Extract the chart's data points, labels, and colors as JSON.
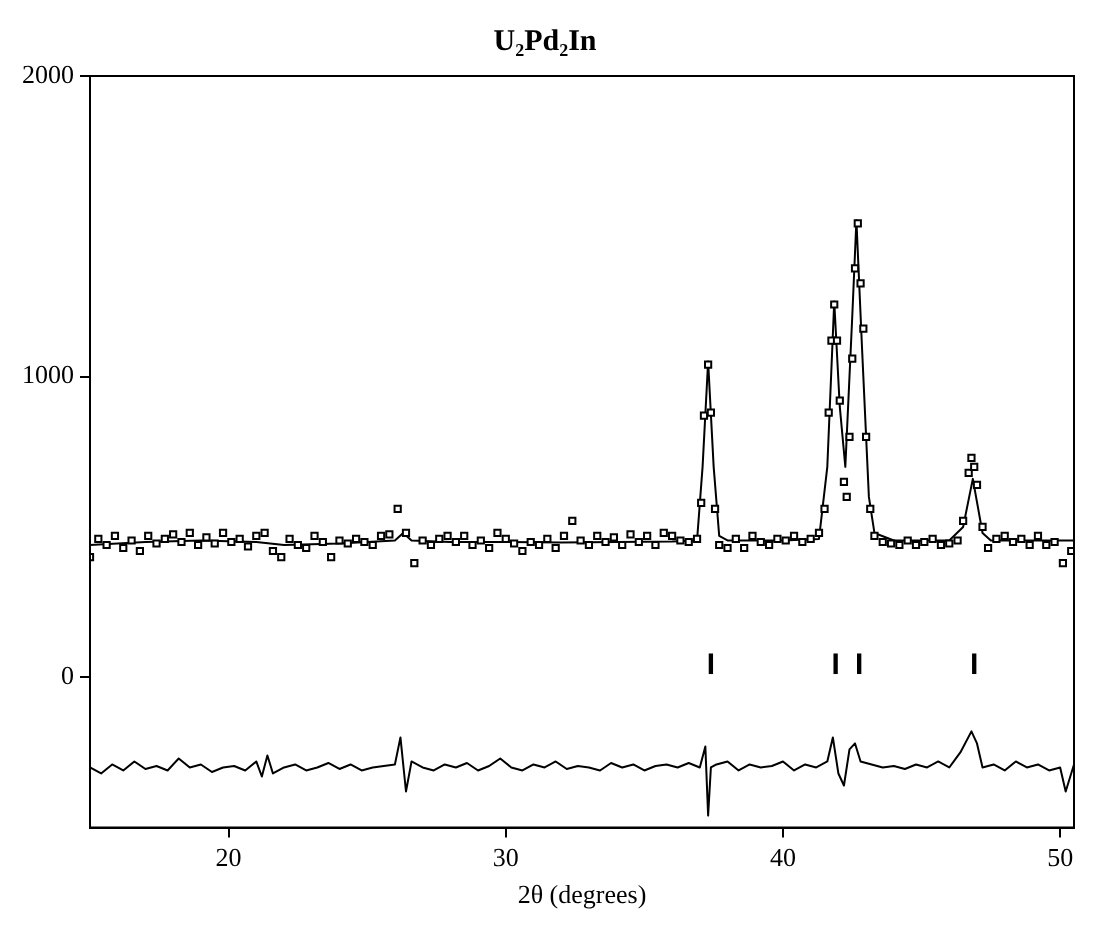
{
  "chart_data": {
    "type": "scatter",
    "title": "U₂Pd₂In",
    "xlabel": "2θ (degrees)",
    "xlim": [
      15,
      50.5
    ],
    "xticks": [
      20,
      30,
      40,
      50
    ],
    "ylim": [
      -500,
      2000
    ],
    "yticks": [
      0,
      1000,
      2000
    ],
    "grid": false,
    "legend": false,
    "series": [
      {
        "type": "scatter",
        "marker": "square",
        "color": "#000000",
        "x": [
          15.0,
          15.3,
          15.6,
          15.9,
          16.2,
          16.5,
          16.8,
          17.1,
          17.4,
          17.7,
          18.0,
          18.3,
          18.6,
          18.9,
          19.2,
          19.5,
          19.8,
          20.1,
          20.4,
          20.7,
          21.0,
          21.3,
          21.6,
          21.9,
          22.2,
          22.5,
          22.8,
          23.1,
          23.4,
          23.7,
          24.0,
          24.3,
          24.6,
          24.9,
          25.2,
          25.5,
          25.8,
          26.1,
          26.4,
          26.7,
          27.0,
          27.3,
          27.6,
          27.9,
          28.2,
          28.5,
          28.8,
          29.1,
          29.4,
          29.7,
          30.0,
          30.3,
          30.6,
          30.9,
          31.2,
          31.5,
          31.8,
          32.1,
          32.4,
          32.7,
          33.0,
          33.3,
          33.6,
          33.9,
          34.2,
          34.5,
          34.8,
          35.1,
          35.4,
          35.7,
          36.0,
          36.3,
          36.6,
          36.9,
          37.05,
          37.15,
          37.3,
          37.4,
          37.55,
          37.7,
          38.0,
          38.3,
          38.6,
          38.9,
          39.2,
          39.5,
          39.8,
          40.1,
          40.4,
          40.7,
          41.0,
          41.3,
          41.5,
          41.65,
          41.75,
          41.85,
          41.95,
          42.05,
          42.2,
          42.3,
          42.4,
          42.5,
          42.6,
          42.7,
          42.8,
          42.9,
          43.0,
          43.15,
          43.3,
          43.6,
          43.9,
          44.2,
          44.5,
          44.8,
          45.1,
          45.4,
          45.7,
          46.0,
          46.3,
          46.5,
          46.7,
          46.8,
          46.9,
          47.0,
          47.2,
          47.4,
          47.7,
          48.0,
          48.3,
          48.6,
          48.9,
          49.2,
          49.5,
          49.8,
          50.1,
          50.4
        ],
        "values": [
          400,
          460,
          440,
          470,
          430,
          455,
          420,
          470,
          445,
          460,
          475,
          450,
          480,
          440,
          465,
          445,
          480,
          450,
          460,
          435,
          470,
          480,
          420,
          400,
          460,
          440,
          430,
          470,
          450,
          400,
          455,
          445,
          460,
          450,
          440,
          470,
          475,
          560,
          480,
          380,
          455,
          440,
          460,
          470,
          450,
          470,
          440,
          455,
          430,
          480,
          460,
          445,
          420,
          450,
          440,
          460,
          430,
          470,
          520,
          455,
          440,
          470,
          450,
          465,
          440,
          475,
          450,
          470,
          440,
          480,
          470,
          455,
          450,
          460,
          580,
          870,
          1040,
          880,
          560,
          440,
          430,
          460,
          430,
          470,
          450,
          440,
          460,
          455,
          470,
          450,
          460,
          480,
          560,
          880,
          1120,
          1240,
          1120,
          920,
          650,
          600,
          800,
          1060,
          1360,
          1510,
          1310,
          1160,
          800,
          560,
          470,
          450,
          445,
          440,
          455,
          440,
          450,
          460,
          440,
          445,
          455,
          520,
          680,
          730,
          700,
          640,
          500,
          430,
          460,
          470,
          450,
          460,
          440,
          470,
          440,
          450,
          380,
          420
        ]
      },
      {
        "type": "line",
        "marker": "none",
        "color": "#000000",
        "x": [
          15,
          17,
          19,
          21,
          22,
          24,
          26,
          26.3,
          26.6,
          28,
          30,
          32,
          34,
          36,
          36.9,
          37.1,
          37.3,
          37.5,
          37.7,
          38,
          40,
          41.3,
          41.6,
          41.85,
          42.05,
          42.25,
          42.5,
          42.65,
          42.85,
          43.1,
          43.3,
          44,
          46,
          46.5,
          46.85,
          47.2,
          47.5,
          49,
          50.5
        ],
        "values": [
          440,
          450,
          455,
          450,
          440,
          445,
          455,
          480,
          455,
          450,
          450,
          448,
          450,
          452,
          455,
          700,
          1050,
          700,
          470,
          455,
          455,
          460,
          700,
          1250,
          900,
          700,
          1200,
          1520,
          1100,
          600,
          480,
          455,
          455,
          500,
          660,
          480,
          455,
          455,
          455
        ]
      },
      {
        "type": "bar",
        "color": "#000000",
        "x": [
          37.4,
          41.9,
          42.75,
          46.9
        ],
        "base": [
          13,
          13,
          13,
          13
        ],
        "values": [
          64,
          64,
          64,
          64
        ]
      },
      {
        "type": "line",
        "marker": "none",
        "color": "#000000",
        "x": [
          15,
          15.4,
          15.8,
          16.2,
          16.6,
          17,
          17.4,
          17.8,
          18.2,
          18.6,
          19,
          19.4,
          19.8,
          20.2,
          20.6,
          21,
          21.2,
          21.4,
          21.6,
          22,
          22.4,
          22.8,
          23.2,
          23.6,
          24,
          24.4,
          24.8,
          25.2,
          25.6,
          26,
          26.2,
          26.4,
          26.6,
          27,
          27.4,
          27.8,
          28.2,
          28.6,
          29,
          29.4,
          29.8,
          30.2,
          30.6,
          31,
          31.4,
          31.8,
          32.2,
          32.6,
          33,
          33.4,
          33.8,
          34.2,
          34.6,
          35,
          35.4,
          35.8,
          36.2,
          36.6,
          37,
          37.2,
          37.3,
          37.4,
          37.6,
          38,
          38.4,
          38.8,
          39.2,
          39.6,
          40,
          40.4,
          40.8,
          41.2,
          41.6,
          41.8,
          42,
          42.2,
          42.4,
          42.6,
          42.8,
          43.2,
          43.6,
          44,
          44.4,
          44.8,
          45.2,
          45.6,
          46,
          46.4,
          46.8,
          47,
          47.2,
          47.6,
          48,
          48.4,
          48.8,
          49.2,
          49.6,
          50,
          50.2,
          50.5
        ],
        "values": [
          -300,
          -320,
          -290,
          -310,
          -280,
          -305,
          -295,
          -310,
          -270,
          -300,
          -290,
          -315,
          -300,
          -295,
          -310,
          -280,
          -330,
          -260,
          -320,
          -300,
          -290,
          -310,
          -300,
          -285,
          -305,
          -290,
          -310,
          -300,
          -295,
          -290,
          -200,
          -380,
          -280,
          -300,
          -310,
          -290,
          -300,
          -285,
          -310,
          -295,
          -270,
          -300,
          -310,
          -290,
          -300,
          -280,
          -305,
          -295,
          -300,
          -310,
          -285,
          -300,
          -290,
          -310,
          -295,
          -290,
          -300,
          -285,
          -300,
          -230,
          -460,
          -300,
          -290,
          -280,
          -310,
          -290,
          -300,
          -295,
          -280,
          -310,
          -290,
          -300,
          -280,
          -200,
          -320,
          -360,
          -240,
          -220,
          -280,
          -290,
          -300,
          -295,
          -305,
          -290,
          -300,
          -280,
          -300,
          -250,
          -180,
          -220,
          -300,
          -290,
          -310,
          -280,
          -300,
          -290,
          -310,
          -300,
          -380,
          -290
        ]
      }
    ]
  }
}
